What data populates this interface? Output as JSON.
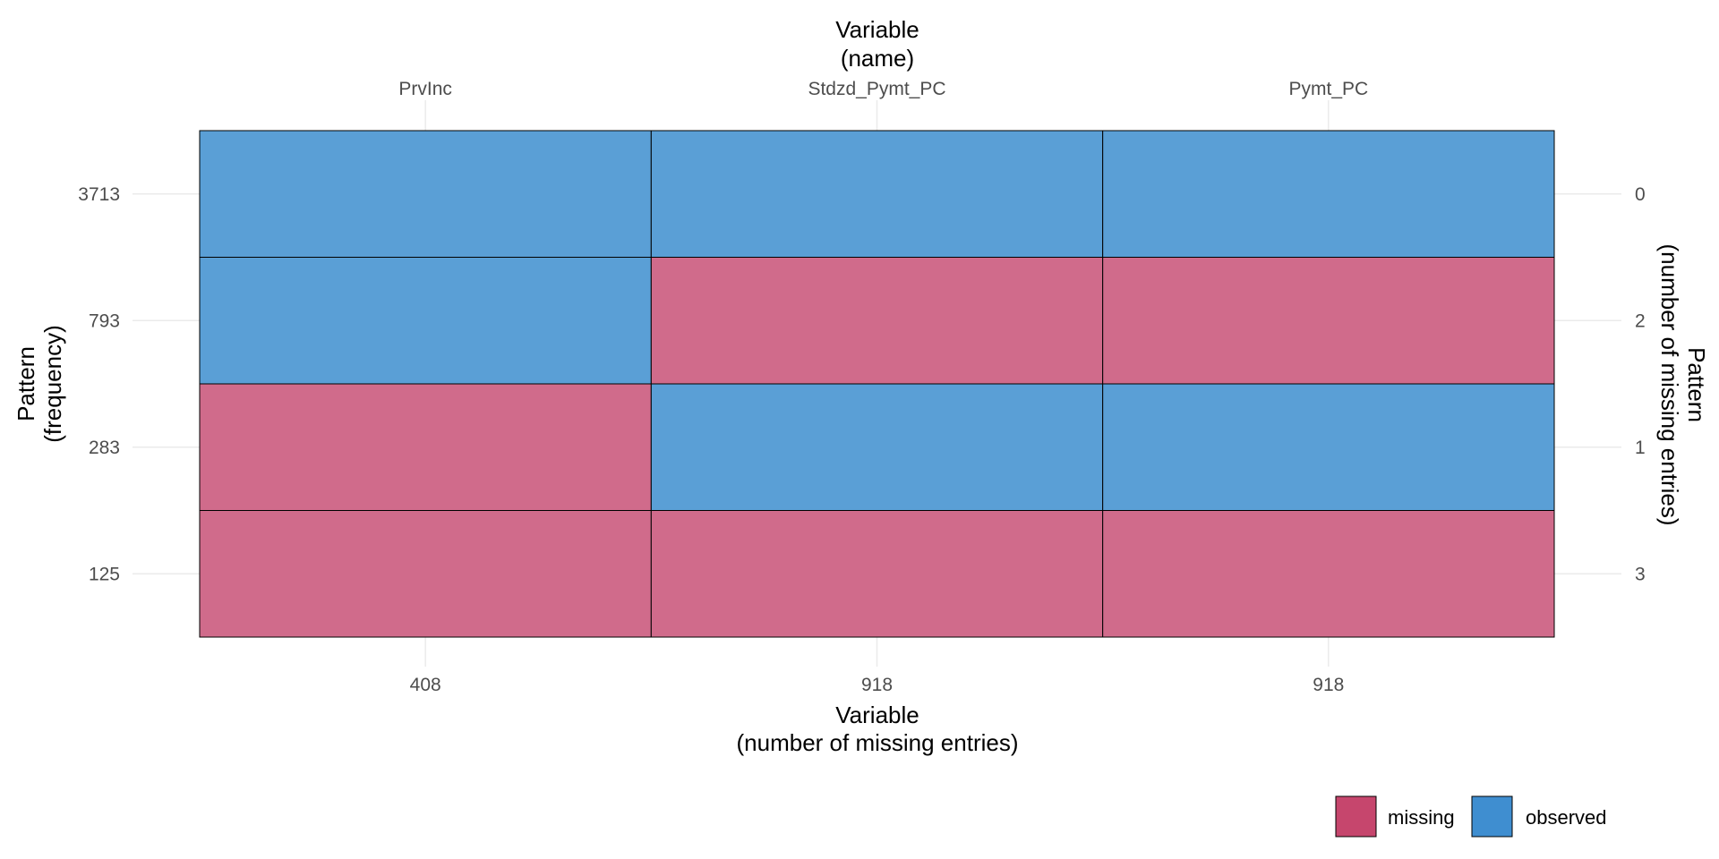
{
  "chart_data": {
    "type": "heatmap",
    "title": "",
    "variables": [
      "PrvInc",
      "Stdzd_Pymt_PC",
      "Pymt_PC"
    ],
    "missing_counts": [
      408,
      918,
      918
    ],
    "patterns": [
      {
        "frequency": 3713,
        "n_missing": 0,
        "cells": [
          "observed",
          "observed",
          "observed"
        ]
      },
      {
        "frequency": 793,
        "n_missing": 2,
        "cells": [
          "observed",
          "missing",
          "missing"
        ]
      },
      {
        "frequency": 283,
        "n_missing": 1,
        "cells": [
          "missing",
          "observed",
          "observed"
        ]
      },
      {
        "frequency": 125,
        "n_missing": 3,
        "cells": [
          "missing",
          "missing",
          "missing"
        ]
      }
    ],
    "top_axis_label": [
      "Variable",
      "(name)"
    ],
    "bottom_axis_label": [
      "Variable",
      "(number of missing entries)"
    ],
    "left_axis_label": [
      "Pattern",
      "(frequency)"
    ],
    "right_axis_label": [
      "Pattern",
      "(number of missing entries)"
    ],
    "legend": [
      {
        "key": "missing",
        "label": "missing",
        "color": "#C6466D"
      },
      {
        "key": "observed",
        "label": "observed",
        "color": "#3F8ED0"
      }
    ],
    "legend_position": "bottom-right",
    "grid": true
  },
  "colors": {
    "missing": "#D06B8B",
    "observed": "#5A9FD6",
    "border": "#000000",
    "grid": "#EBEBEB"
  }
}
